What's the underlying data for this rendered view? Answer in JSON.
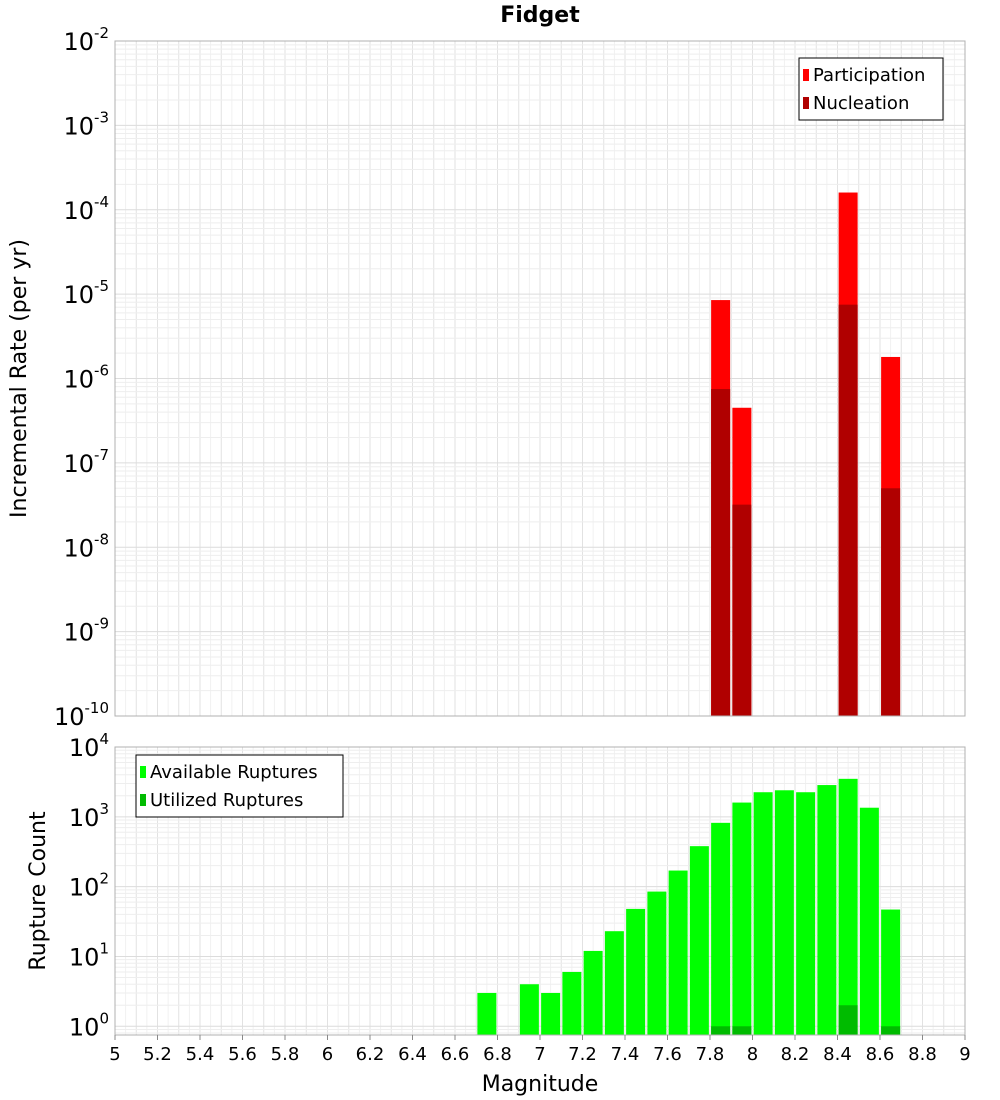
{
  "chart_data": [
    {
      "type": "bar",
      "title": "Fidget",
      "xlabel": "",
      "ylabel": "Incremental Rate (per yr)",
      "yscale": "log",
      "ylim": [
        1e-10,
        0.01
      ],
      "xlim": [
        5,
        9
      ],
      "ytick_exponents": [
        -2,
        -3,
        -4,
        -5,
        -6,
        -7,
        -8,
        -9,
        -10
      ],
      "legend": "top-right",
      "grid": true,
      "colors": {
        "Participation": "#ff0000",
        "Nucleation": "#b00000"
      },
      "series": [
        {
          "name": "Participation",
          "x": [
            7.85,
            7.95,
            8.45,
            8.65
          ],
          "values": [
            8.5e-06,
            4.5e-07,
            0.00016,
            1.8e-06
          ]
        },
        {
          "name": "Nucleation",
          "x": [
            7.85,
            7.95,
            8.45,
            8.65
          ],
          "values": [
            7.5e-07,
            3.2e-08,
            7.5e-06,
            5e-08
          ]
        }
      ]
    },
    {
      "type": "bar",
      "title": "",
      "xlabel": "Magnitude",
      "ylabel": "Rupture Count",
      "yscale": "log",
      "ylim": [
        0.75,
        10000
      ],
      "xlim": [
        5,
        9
      ],
      "ytick_exponents": [
        4,
        3,
        2,
        1,
        0
      ],
      "xticks": [
        "5",
        "5.2",
        "5.4",
        "5.6",
        "5.8",
        "6",
        "6.2",
        "6.4",
        "6.6",
        "6.8",
        "7",
        "7.2",
        "7.4",
        "7.6",
        "7.8",
        "8",
        "8.2",
        "8.4",
        "8.6",
        "8.8",
        "9"
      ],
      "legend": "top-left",
      "grid": true,
      "colors": {
        "Available Ruptures": "#00ff00",
        "Utilized Ruptures": "#00bb00"
      },
      "series": [
        {
          "name": "Available Ruptures",
          "x": [
            6.75,
            6.95,
            7.05,
            7.15,
            7.25,
            7.35,
            7.45,
            7.55,
            7.65,
            7.75,
            7.85,
            7.95,
            8.05,
            8.15,
            8.25,
            8.35,
            8.45,
            8.55,
            8.65
          ],
          "values": [
            3,
            4,
            3,
            6,
            12,
            23,
            48,
            85,
            170,
            380,
            820,
            1600,
            2250,
            2400,
            2250,
            2850,
            3500,
            1350,
            47
          ]
        },
        {
          "name": "Utilized Ruptures",
          "x": [
            7.85,
            7.95,
            8.45,
            8.65
          ],
          "values": [
            1,
            1,
            2,
            1
          ]
        }
      ]
    }
  ]
}
